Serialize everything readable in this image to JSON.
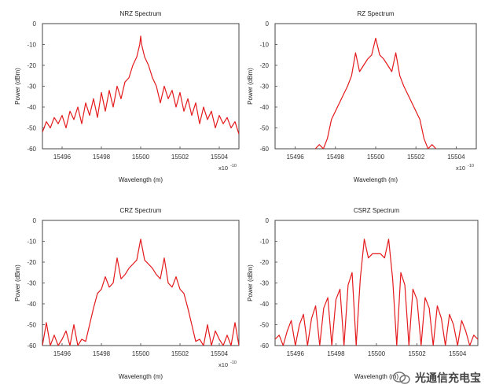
{
  "figure": {
    "watermark": "光通信充电宝"
  },
  "chart_data": [
    {
      "type": "line",
      "title": "NRZ Spectrum",
      "xlabel": "Wavelength (m)",
      "ylabel": "Power (dBm)",
      "exponent_label": "x10",
      "exponent_value": "-10",
      "xlim": [
        15495,
        15505
      ],
      "ylim": [
        -60,
        0
      ],
      "xticks": [
        "15496",
        "15498",
        "15500",
        "15502",
        "15504"
      ],
      "xtick_values": [
        15496,
        15498,
        15500,
        15502,
        15504
      ],
      "yticks": [
        "0",
        "-10",
        "-20",
        "-30",
        "-40",
        "-50",
        "-60"
      ],
      "ytick_values": [
        0,
        -10,
        -20,
        -30,
        -40,
        -50,
        -60
      ],
      "series": [
        {
          "name": "NRZ",
          "color": "#e41a1c",
          "x": [
            15495,
            15495.2,
            15495.4,
            15495.6,
            15495.8,
            15496,
            15496.2,
            15496.4,
            15496.6,
            15496.8,
            15497,
            15497.2,
            15497.4,
            15497.6,
            15497.8,
            15498,
            15498.2,
            15498.4,
            15498.6,
            15498.8,
            15499,
            15499.2,
            15499.4,
            15499.6,
            15499.8,
            15499.95,
            15500,
            15500.05,
            15500.2,
            15500.4,
            15500.6,
            15500.8,
            15501,
            15501.2,
            15501.4,
            15501.6,
            15501.8,
            15502,
            15502.2,
            15502.4,
            15502.6,
            15502.8,
            15503,
            15503.2,
            15503.4,
            15503.6,
            15503.8,
            15504,
            15504.2,
            15504.4,
            15504.6,
            15504.8,
            15505
          ],
          "values": [
            -52,
            -47,
            -50,
            -45,
            -48,
            -44,
            -50,
            -42,
            -46,
            -40,
            -48,
            -38,
            -44,
            -36,
            -45,
            -33,
            -42,
            -32,
            -40,
            -30,
            -36,
            -28,
            -26,
            -20,
            -16,
            -10,
            -6,
            -10,
            -16,
            -20,
            -26,
            -30,
            -38,
            -30,
            -36,
            -32,
            -40,
            -33,
            -42,
            -36,
            -44,
            -38,
            -48,
            -40,
            -46,
            -42,
            -50,
            -44,
            -48,
            -45,
            -50,
            -47,
            -53
          ]
        }
      ]
    },
    {
      "type": "line",
      "title": "RZ Spectrum",
      "xlabel": "Wavelength (m)",
      "ylabel": "Power (dBm)",
      "exponent_label": "x10",
      "exponent_value": "-10",
      "xlim": [
        15495,
        15505
      ],
      "ylim": [
        -60,
        0
      ],
      "xticks": [
        "15496",
        "15498",
        "15500",
        "15502",
        "15504"
      ],
      "xtick_values": [
        15496,
        15498,
        15500,
        15502,
        15504
      ],
      "yticks": [
        "0",
        "-10",
        "-20",
        "-30",
        "-40",
        "-50",
        "-60"
      ],
      "ytick_values": [
        0,
        -10,
        -20,
        -30,
        -40,
        -50,
        -60
      ],
      "series": [
        {
          "name": "RZ",
          "color": "#e41a1c",
          "x": [
            15497,
            15497.2,
            15497.4,
            15497.6,
            15497.8,
            15498,
            15498.2,
            15498.4,
            15498.6,
            15498.8,
            15499,
            15499.2,
            15499.4,
            15499.6,
            15499.8,
            15500,
            15500.2,
            15500.4,
            15500.6,
            15500.8,
            15501,
            15501.2,
            15501.4,
            15501.6,
            15501.8,
            15502,
            15502.2,
            15502.4,
            15502.6,
            15502.8,
            15503
          ],
          "values": [
            -60,
            -58,
            -60,
            -55,
            -46,
            -42,
            -38,
            -34,
            -30,
            -25,
            -14,
            -23,
            -20,
            -17,
            -15,
            -7,
            -15,
            -17,
            -20,
            -23,
            -14,
            -25,
            -30,
            -34,
            -38,
            -42,
            -46,
            -55,
            -60,
            -58,
            -60
          ]
        }
      ]
    },
    {
      "type": "line",
      "title": "CRZ Spectrum",
      "xlabel": "Wavelength (m)",
      "ylabel": "Power (dBm)",
      "exponent_label": "x10",
      "exponent_value": "-10",
      "xlim": [
        15495,
        15505
      ],
      "ylim": [
        -60,
        0
      ],
      "xticks": [
        "15496",
        "15498",
        "15500",
        "15502",
        "15504"
      ],
      "xtick_values": [
        15496,
        15498,
        15500,
        15502,
        15504
      ],
      "yticks": [
        "0",
        "-10",
        "-20",
        "-30",
        "-40",
        "-50",
        "-60"
      ],
      "ytick_values": [
        0,
        -10,
        -20,
        -30,
        -40,
        -50,
        -60
      ],
      "series": [
        {
          "name": "CRZ",
          "color": "#e41a1c",
          "x": [
            15495,
            15495.2,
            15495.4,
            15495.6,
            15495.8,
            15496,
            15496.2,
            15496.4,
            15496.6,
            15496.8,
            15497,
            15497.2,
            15497.4,
            15497.6,
            15497.8,
            15498,
            15498.2,
            15498.4,
            15498.6,
            15498.8,
            15499,
            15499.2,
            15499.4,
            15499.6,
            15499.8,
            15500,
            15500.2,
            15500.4,
            15500.6,
            15500.8,
            15501,
            15501.2,
            15501.4,
            15501.6,
            15501.8,
            15502,
            15502.2,
            15502.4,
            15502.6,
            15502.8,
            15503,
            15503.2,
            15503.4,
            15503.6,
            15503.8,
            15504,
            15504.2,
            15504.4,
            15504.6,
            15504.8,
            15505
          ],
          "values": [
            -60,
            -49,
            -60,
            -55,
            -60,
            -57,
            -53,
            -60,
            -50,
            -60,
            -57,
            -58,
            -50,
            -42,
            -35,
            -33,
            -27,
            -32,
            -30,
            -18,
            -28,
            -26,
            -23,
            -21,
            -19,
            -9,
            -19,
            -21,
            -23,
            -26,
            -28,
            -18,
            -30,
            -32,
            -27,
            -33,
            -35,
            -42,
            -50,
            -58,
            -57,
            -60,
            -50,
            -60,
            -53,
            -57,
            -60,
            -55,
            -60,
            -49,
            -60
          ]
        }
      ]
    },
    {
      "type": "line",
      "title": "CSRZ Spectrum",
      "xlabel": "Wavelength (m)",
      "ylabel": "Power (dBm)",
      "exponent_label": "",
      "exponent_value": "",
      "xlim": [
        15495,
        15505
      ],
      "ylim": [
        -60,
        0
      ],
      "xticks": [
        "15496",
        "15498",
        "15500",
        "15502",
        "15504"
      ],
      "xtick_values": [
        15496,
        15498,
        15500,
        15502,
        15504
      ],
      "yticks": [
        "0",
        "-10",
        "-20",
        "-30",
        "-40",
        "-50",
        "-60"
      ],
      "ytick_values": [
        0,
        -10,
        -20,
        -30,
        -40,
        -50,
        -60
      ],
      "series": [
        {
          "name": "CSRZ",
          "color": "#e41a1c",
          "x": [
            15495,
            15495.2,
            15495.4,
            15495.6,
            15495.8,
            15496,
            15496.2,
            15496.4,
            15496.6,
            15496.8,
            15497,
            15497.2,
            15497.4,
            15497.6,
            15497.8,
            15498,
            15498.2,
            15498.4,
            15498.6,
            15498.8,
            15499,
            15499.2,
            15499.4,
            15499.6,
            15499.8,
            15500,
            15500.2,
            15500.4,
            15500.6,
            15500.8,
            15501,
            15501.2,
            15501.4,
            15501.6,
            15501.8,
            15502,
            15502.2,
            15502.4,
            15502.6,
            15502.8,
            15503,
            15503.2,
            15503.4,
            15503.6,
            15503.8,
            15504,
            15504.2,
            15504.4,
            15504.6,
            15504.8,
            15505
          ],
          "values": [
            -57,
            -55,
            -60,
            -53,
            -48,
            -60,
            -50,
            -45,
            -60,
            -47,
            -41,
            -60,
            -42,
            -37,
            -60,
            -38,
            -33,
            -60,
            -31,
            -25,
            -60,
            -28,
            -9,
            -18,
            -16,
            -16,
            -16,
            -18,
            -9,
            -28,
            -60,
            -25,
            -31,
            -60,
            -33,
            -38,
            -60,
            -37,
            -42,
            -60,
            -41,
            -47,
            -60,
            -45,
            -50,
            -60,
            -48,
            -53,
            -60,
            -55,
            -57
          ]
        }
      ]
    }
  ]
}
